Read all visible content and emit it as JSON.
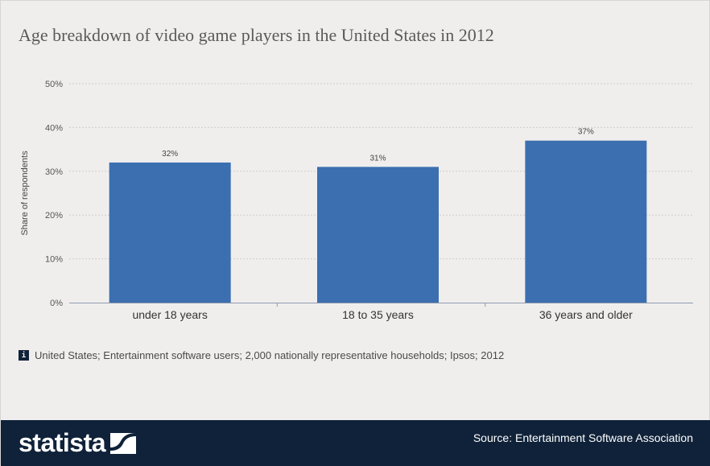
{
  "chart_data": {
    "type": "bar",
    "title": "Age breakdown of video game players in the United States in 2012",
    "categories": [
      "under 18 years",
      "18 to 35 years",
      "36 years and older"
    ],
    "values": [
      32,
      31,
      37
    ],
    "value_labels": [
      "32%",
      "31%",
      "37%"
    ],
    "ylabel": "Share of respondents",
    "ylim": [
      0,
      50
    ],
    "yticks": [
      0,
      10,
      20,
      30,
      40,
      50
    ],
    "ytick_labels": [
      "0%",
      "10%",
      "20%",
      "30%",
      "40%",
      "50%"
    ],
    "grid": true,
    "bar_color": "#3b6fb0"
  },
  "note": "United States; Entertainment software users; 2,000 nationally representative households; Ipsos; 2012",
  "info_icon": "i",
  "footer": {
    "logo": "statista",
    "source": "Source: Entertainment Software Association"
  }
}
